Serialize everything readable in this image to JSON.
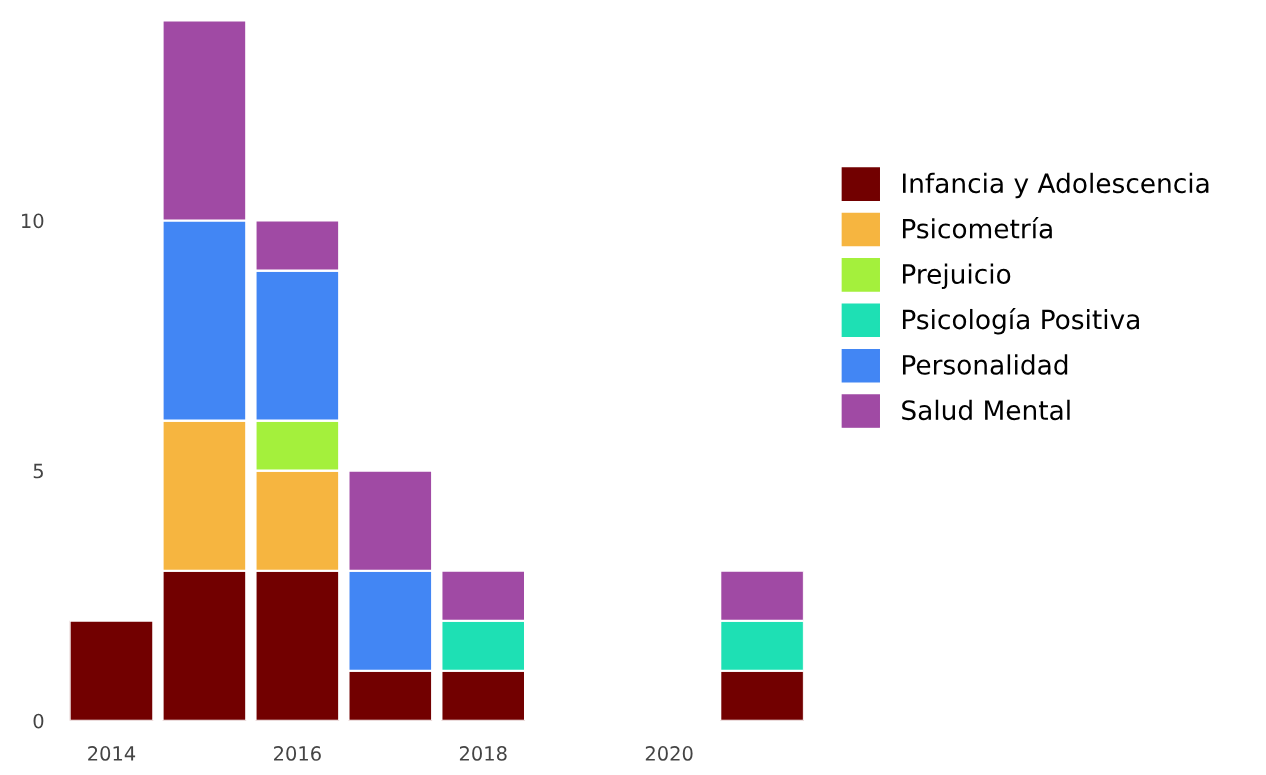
{
  "chart_data": {
    "type": "bar",
    "stacked": true,
    "x": [
      2014,
      2015,
      2016,
      2017,
      2018,
      2021
    ],
    "series": [
      {
        "name": "Infancia y Adolescencia",
        "color": "#720000",
        "values": [
          2,
          3,
          3,
          1,
          1,
          1
        ]
      },
      {
        "name": "Psicometría",
        "color": "#f6b540",
        "values": [
          null,
          3,
          2,
          null,
          null,
          null
        ]
      },
      {
        "name": "Prejuicio",
        "color": "#a4f03c",
        "values": [
          null,
          null,
          1,
          null,
          null,
          null
        ]
      },
      {
        "name": "Psicología Positiva",
        "color": "#1ee0b4",
        "values": [
          null,
          null,
          null,
          null,
          1,
          1
        ]
      },
      {
        "name": "Personalidad",
        "color": "#4286f4",
        "values": [
          null,
          4,
          3,
          2,
          null,
          null
        ]
      },
      {
        "name": "Salud Mental",
        "color": "#a04aa4",
        "values": [
          null,
          4,
          1,
          2,
          1,
          1
        ]
      }
    ],
    "xlim": [
      2013.55,
      2021.45
    ],
    "xticks": [
      2014,
      2016,
      2018,
      2020
    ],
    "ylim": [
      0,
      14.1
    ],
    "yticks": [
      0,
      5,
      10
    ],
    "grid": false,
    "legend": "right"
  }
}
